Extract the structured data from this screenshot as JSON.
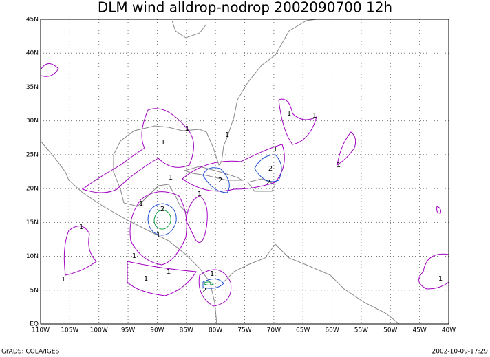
{
  "title": "DLM wind alldrop-nodrop 2002090700 12h",
  "x_axis_labels": [
    "110W",
    "105W",
    "100W",
    "95W",
    "90W",
    "85W",
    "80W",
    "75W",
    "70W",
    "65W",
    "60W",
    "55W",
    "50W",
    "45W",
    "40W"
  ],
  "y_axis_labels": [
    "EQ",
    "5N",
    "10N",
    "15N",
    "20N",
    "25N",
    "30N",
    "35N",
    "40N",
    "45N"
  ],
  "contour_labels": [
    "1",
    "1",
    "1",
    "1",
    "1",
    "1",
    "1",
    "1",
    "1",
    "1",
    "2",
    "2",
    "2",
    "2",
    "1",
    "1",
    "1",
    "1",
    "1",
    "1",
    "2",
    "1",
    "1"
  ],
  "footer": {
    "left": "GrADS: COLA/IGES",
    "right": "2002-10-09-17:29"
  }
}
